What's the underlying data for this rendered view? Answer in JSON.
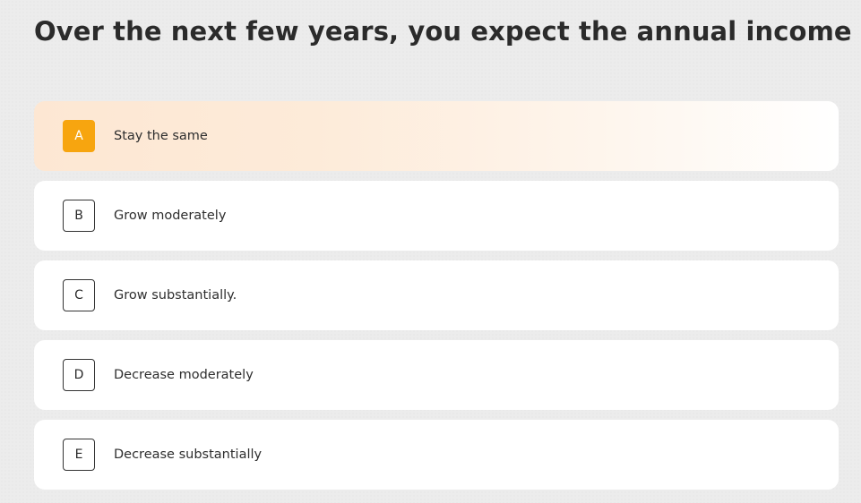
{
  "question": {
    "title": "Over the next few years, you expect the annual income to"
  },
  "options": [
    {
      "letter": "A",
      "label": "Stay the same",
      "selected": true
    },
    {
      "letter": "B",
      "label": "Grow moderately",
      "selected": false
    },
    {
      "letter": "C",
      "label": "Grow substantially.",
      "selected": false
    },
    {
      "letter": "D",
      "label": "Decrease moderately",
      "selected": false
    },
    {
      "letter": "E",
      "label": "Decrease substantially",
      "selected": false
    }
  ],
  "colors": {
    "accent": "#f7a50f",
    "selected_gradient_start": "#fde7d3",
    "card_background": "#ffffff",
    "page_background": "#ececec"
  }
}
